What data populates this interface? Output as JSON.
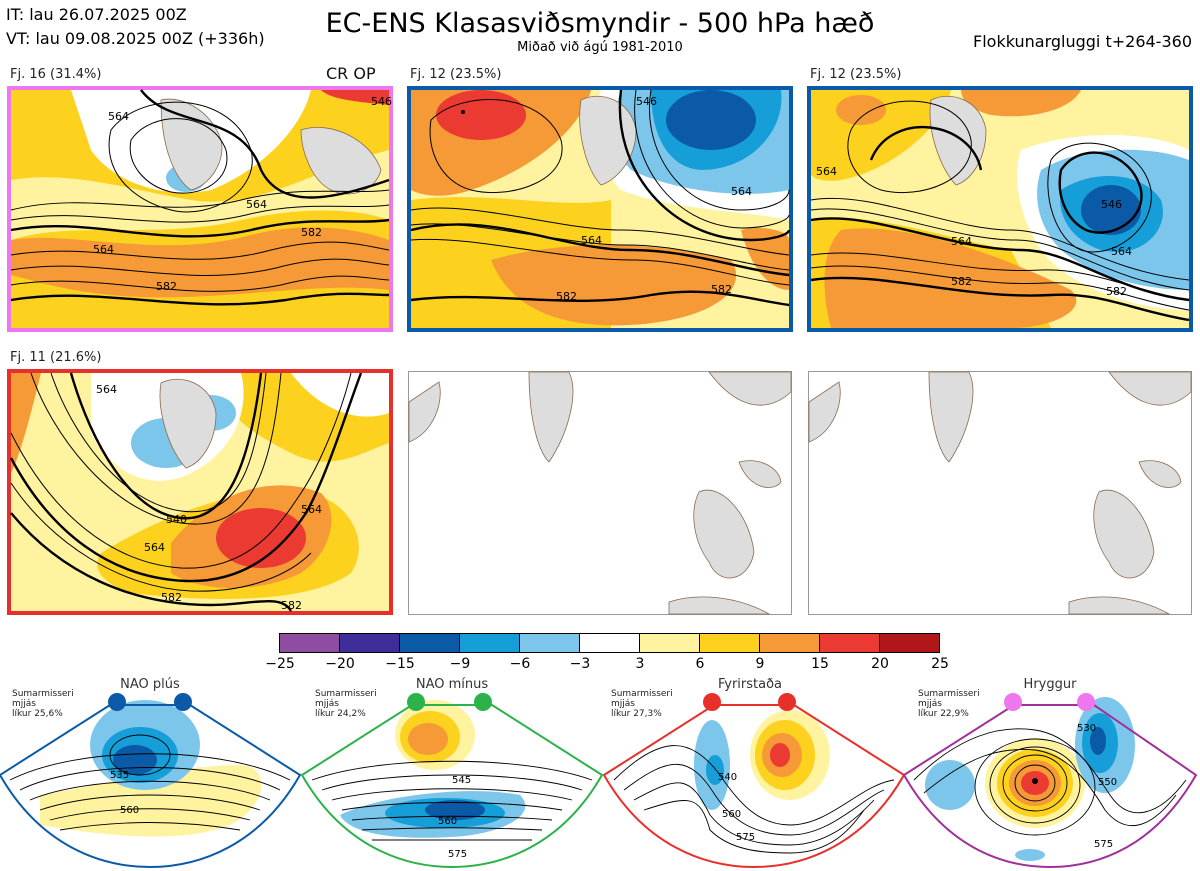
{
  "header": {
    "init_time": "IT: lau 26.07.2025 00Z",
    "valid_time": "VT: lau 09.08.2025 00Z  (+336h)",
    "title": "EC-ENS Klasasviðsmyndir - 500 hPa hæð",
    "subtitle": "Miðað við ágú 1981-2010",
    "window": "Flokkunargluggi t+264-360"
  },
  "op_label": "CR OP",
  "panels": [
    {
      "label": "Fj. 16 (31.4%)",
      "border_color": "#ee77ee",
      "contour_labels": [
        "564",
        "582",
        "564",
        "582",
        "564",
        "546"
      ]
    },
    {
      "label": "Fj. 12 (23.5%)",
      "border_color": "#0a5aa8",
      "contour_labels": [
        "564",
        "582",
        "582",
        "564",
        "546"
      ]
    },
    {
      "label": "Fj. 12 (23.5%)",
      "border_color": "#0a5aa8",
      "contour_labels": [
        "564",
        "546",
        "582",
        "564",
        "582",
        "564"
      ]
    },
    {
      "label": "Fj. 11 (21.6%)",
      "border_color": "#e8302a",
      "contour_labels": [
        "540",
        "564",
        "582",
        "564",
        "582",
        "564"
      ]
    },
    {
      "label": "",
      "border_color": "#999999",
      "contour_labels": []
    },
    {
      "label": "",
      "border_color": "#999999",
      "contour_labels": []
    }
  ],
  "colorbar": {
    "ticks": [
      "−25",
      "−20",
      "−15",
      "−9",
      "−6",
      "−3",
      "3",
      "6",
      "9",
      "15",
      "20",
      "25"
    ],
    "colors": [
      "#8e4da0",
      "#3f2e9a",
      "#0a5aa8",
      "#159ed8",
      "#7cc6ec",
      "#ffffff",
      "#fff3a0",
      "#fcd21e",
      "#f59a36",
      "#ea3a32",
      "#b0161a"
    ]
  },
  "regimes": [
    {
      "name": "NAO plús",
      "note": [
        "Sumarmisseri",
        "mjjás",
        "líkur 25,6%"
      ],
      "color": "#0a5aa8",
      "contour_labels": [
        "535",
        "560"
      ]
    },
    {
      "name": "NAO mínus",
      "note": [
        "Sumarmisseri",
        "mjjás",
        "líkur 24,2%"
      ],
      "color": "#2bb24a",
      "contour_labels": [
        "545",
        "560",
        "575"
      ]
    },
    {
      "name": "Fyrirstaða",
      "note": [
        "Sumarmisseri",
        "mjjás",
        "líkur 27,3%"
      ],
      "color": "#e8302a",
      "contour_labels": [
        "540",
        "560",
        "575"
      ]
    },
    {
      "name": "Hryggur",
      "note": [
        "Sumarmisseri",
        "mjjás",
        "líkur 22,9%"
      ],
      "color": "#a0309a",
      "contour_labels": [
        "530",
        "550",
        "575"
      ]
    }
  ]
}
